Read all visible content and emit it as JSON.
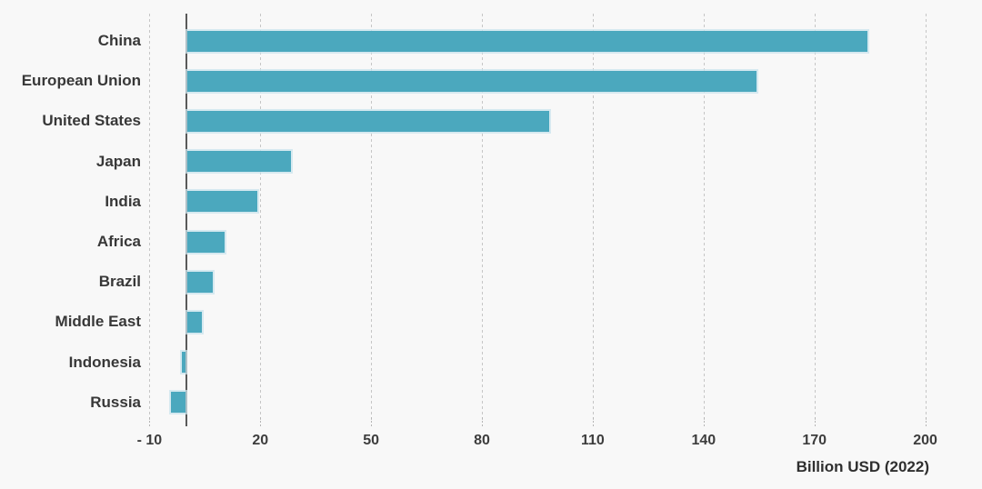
{
  "chart_data": {
    "type": "bar",
    "orientation": "horizontal",
    "title": "",
    "categories": [
      "China",
      "European Union",
      "United States",
      "Japan",
      "India",
      "Africa",
      "Brazil",
      "Middle East",
      "Indonesia",
      "Russia"
    ],
    "values": [
      184,
      154,
      98,
      28,
      19,
      10,
      7,
      4,
      -1,
      -4
    ],
    "xlabel": "Billion USD (2022)",
    "xlim": [
      -10,
      215
    ],
    "x_ticks": [
      {
        "value": -10,
        "label": "- 10"
      },
      {
        "value": 20,
        "label": "20"
      },
      {
        "value": 50,
        "label": "50"
      },
      {
        "value": 80,
        "label": "80"
      },
      {
        "value": 110,
        "label": "110"
      },
      {
        "value": 140,
        "label": "140"
      },
      {
        "value": 170,
        "label": "170"
      },
      {
        "value": 200,
        "label": "200"
      }
    ],
    "grid": "vertical-dashed",
    "legend": "none",
    "colors": {
      "bar": "#4BA8BE",
      "bar_edge": "#CBE4EE",
      "gridline": "#C6C6C6",
      "zero_axis": "#5A5A5A",
      "text": "#3A3A3A",
      "background": "#F8F8F8"
    }
  }
}
